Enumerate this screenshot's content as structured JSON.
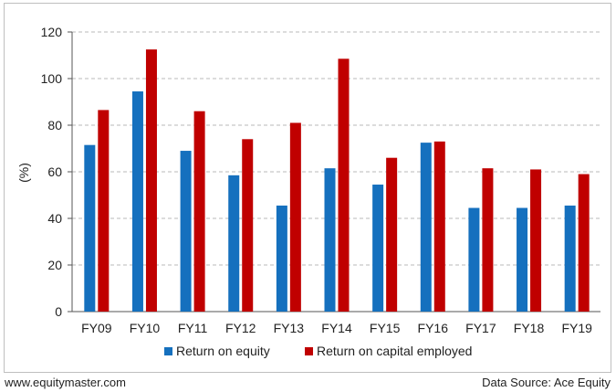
{
  "chart_data": {
    "type": "bar",
    "categories": [
      "FY09",
      "FY10",
      "FY11",
      "FY12",
      "FY13",
      "FY14",
      "FY15",
      "FY16",
      "FY17",
      "FY18",
      "FY19"
    ],
    "series": [
      {
        "name": "Return on equity",
        "color": "#1570be",
        "values": [
          71.5,
          94.5,
          69.0,
          58.5,
          45.5,
          61.5,
          54.5,
          72.5,
          44.5,
          44.5,
          45.5
        ]
      },
      {
        "name": "Return on capital employed",
        "color": "#c00000",
        "values": [
          86.5,
          112.5,
          86.0,
          74.0,
          81.0,
          108.5,
          66.0,
          73.0,
          61.5,
          61.0,
          59.0
        ]
      }
    ],
    "ylabel": "(%)",
    "ylim": [
      0,
      120
    ],
    "yticks": [
      0,
      20,
      40,
      60,
      80,
      100,
      120
    ],
    "grid": true,
    "legend": "bottom-center"
  },
  "footer": {
    "website": "www.equitymaster.com",
    "source": "Data Source: Ace Equity"
  }
}
